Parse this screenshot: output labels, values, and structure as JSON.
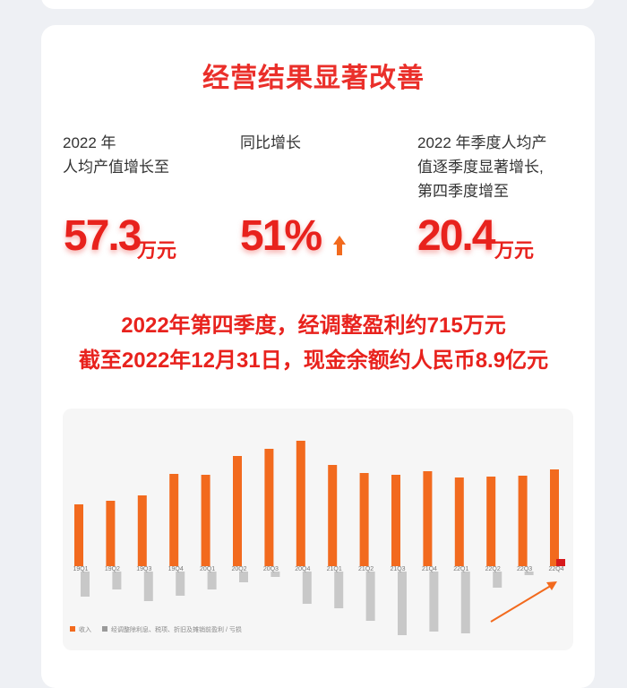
{
  "headline": "经营结果显著改善",
  "metrics": [
    {
      "label_line1": "2022 年",
      "label_line2": "人均产值增长至",
      "value": "57.3",
      "unit": "万元"
    },
    {
      "label_line1": "同比增长",
      "value": "51%",
      "arrow": "up-arrow-icon"
    },
    {
      "label_line1": "2022 年季度人均产",
      "label_line2": "值逐季度显著增长,",
      "label_line3": "第四季度增至",
      "value": "20.4",
      "unit": "万元"
    }
  ],
  "highlights": [
    "2022年第四季度，经调整盈利约715万元",
    "截至2022年12月31日，现金余额约人民币8.9亿元"
  ],
  "colors": {
    "accent": "#e8221d",
    "revenue": "#f26a1e",
    "profit": "#c8c8c8",
    "profit_positive": "#d7191c"
  },
  "chart_data": {
    "type": "bar",
    "categories": [
      "19Q1",
      "19Q2",
      "19Q3",
      "19Q4",
      "20Q1",
      "20Q2",
      "20Q3",
      "20Q4",
      "21Q1",
      "21Q2",
      "21Q3",
      "21Q4",
      "22Q1",
      "22Q2",
      "22Q3",
      "22Q4"
    ],
    "series": [
      {
        "name": "收入",
        "values": [
          69,
          73,
          79,
          103,
          102,
          123,
          131,
          140,
          113,
          104,
          102,
          106,
          99,
          100,
          101,
          108
        ]
      },
      {
        "name": "经调整除利息、税项、折旧及摊销前盈利 / 亏损",
        "values": [
          -28,
          -20,
          -33,
          -27,
          -20,
          -12,
          -6,
          -36,
          -41,
          -55,
          -71,
          -67,
          -69,
          -18,
          -4,
          6
        ]
      }
    ],
    "legend_position": "bottom-left",
    "grid": false,
    "annotation": "trend-arrow-icon"
  }
}
